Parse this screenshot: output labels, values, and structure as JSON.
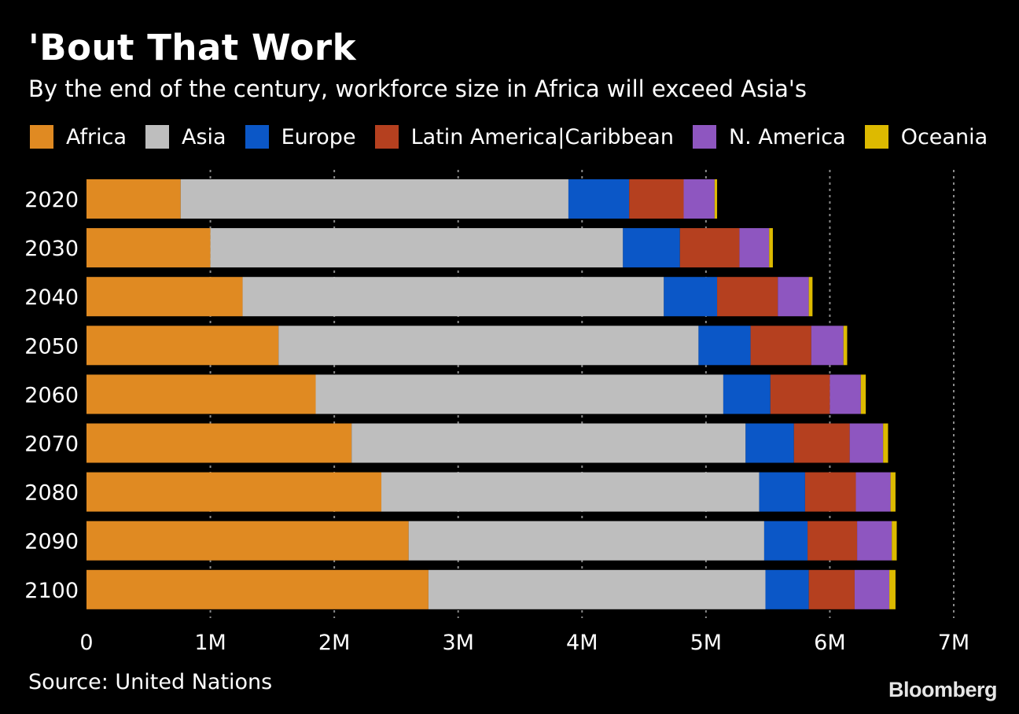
{
  "title": "'Bout That Work",
  "subtitle": "By the end of the century, workforce size in Africa will exceed Asia's",
  "legend": [
    {
      "label": "Africa",
      "color": "#E08A22"
    },
    {
      "label": "Asia",
      "color": "#BEBEBE"
    },
    {
      "label": "Europe",
      "color": "#0B57C7"
    },
    {
      "label": "Latin America|Caribbean",
      "color": "#B5401F"
    },
    {
      "label": "N. America",
      "color": "#8E56C0"
    },
    {
      "label": "Oceania",
      "color": "#DDBA00"
    }
  ],
  "source": "Source: United Nations",
  "brand": "Bloomberg",
  "chart_data": {
    "type": "bar",
    "orientation": "horizontal",
    "stacked": true,
    "categories": [
      "2020",
      "2030",
      "2040",
      "2050",
      "2060",
      "2070",
      "2080",
      "2090",
      "2100"
    ],
    "series": [
      {
        "name": "Africa",
        "color": "#E08A22",
        "values": [
          760000,
          1000000,
          1260000,
          1550000,
          1850000,
          2140000,
          2380000,
          2600000,
          2760000
        ]
      },
      {
        "name": "Asia",
        "color": "#BEBEBE",
        "values": [
          3130000,
          3330000,
          3400000,
          3390000,
          3290000,
          3180000,
          3050000,
          2870000,
          2720000
        ]
      },
      {
        "name": "Europe",
        "color": "#0B57C7",
        "values": [
          490000,
          460000,
          430000,
          420000,
          380000,
          390000,
          370000,
          350000,
          350000
        ]
      },
      {
        "name": "Latin America|Caribbean",
        "color": "#B5401F",
        "values": [
          440000,
          480000,
          490000,
          490000,
          480000,
          450000,
          410000,
          400000,
          370000
        ]
      },
      {
        "name": "N. America",
        "color": "#8E56C0",
        "values": [
          250000,
          240000,
          250000,
          260000,
          250000,
          270000,
          280000,
          280000,
          280000
        ]
      },
      {
        "name": "Oceania",
        "color": "#DDBA00",
        "values": [
          20000,
          30000,
          30000,
          30000,
          40000,
          40000,
          40000,
          40000,
          50000
        ]
      }
    ],
    "xlim": [
      0,
      7000000
    ],
    "xticks": [
      0,
      1000000,
      2000000,
      3000000,
      4000000,
      5000000,
      6000000,
      7000000
    ],
    "xtick_labels": [
      "0",
      "1M",
      "2M",
      "3M",
      "4M",
      "5M",
      "6M",
      "7M"
    ],
    "grid": true,
    "legend_position": "top"
  }
}
